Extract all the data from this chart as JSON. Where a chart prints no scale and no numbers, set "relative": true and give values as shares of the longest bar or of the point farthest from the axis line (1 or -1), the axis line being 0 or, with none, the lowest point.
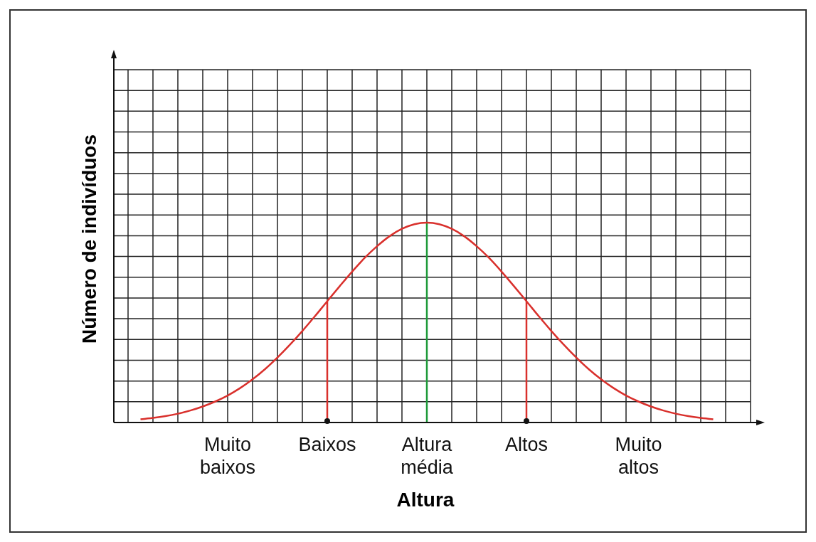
{
  "chart_data": {
    "type": "line",
    "relative": true,
    "xlabel": "Altura",
    "ylabel": "Número de indivíduos",
    "grid": true,
    "line_style": "solid",
    "categories": [
      null,
      null,
      null,
      null,
      null,
      null,
      null,
      "Muito baixos",
      null,
      null,
      null,
      null,
      null,
      null,
      null,
      "Baixos",
      null,
      null,
      null,
      null,
      null,
      null,
      null,
      "Altura média",
      null,
      null,
      null,
      null,
      null,
      null,
      null,
      "Altos",
      null,
      null,
      null,
      null,
      null,
      null,
      null,
      null,
      "Muito altos",
      null,
      null,
      null,
      null,
      null,
      null
    ],
    "series": [
      {
        "color": "#d9302c",
        "values": [
          0.016,
          0.023,
          0.032,
          0.044,
          0.06,
          0.08,
          0.105,
          0.135,
          0.172,
          0.216,
          0.267,
          0.325,
          0.389,
          0.458,
          0.531,
          0.607,
          0.682,
          0.755,
          0.823,
          0.882,
          0.932,
          0.969,
          0.992,
          1,
          0.992,
          0.969,
          0.932,
          0.882,
          0.823,
          0.755,
          0.682,
          0.607,
          0.531,
          0.458,
          0.389,
          0.325,
          0.267,
          0.216,
          0.172,
          0.135,
          0.105,
          0.08,
          0.06,
          0.044,
          0.032,
          0.023,
          0.016
        ]
      }
    ],
    "ref_lines": [
      {
        "axis": "x",
        "value": "Baixos",
        "color": "#d9302c"
      },
      {
        "axis": "x",
        "value": "Altura média",
        "color": "#1e9a3a"
      },
      {
        "axis": "x",
        "value": "Altos",
        "color": "#d9302c"
      }
    ]
  }
}
